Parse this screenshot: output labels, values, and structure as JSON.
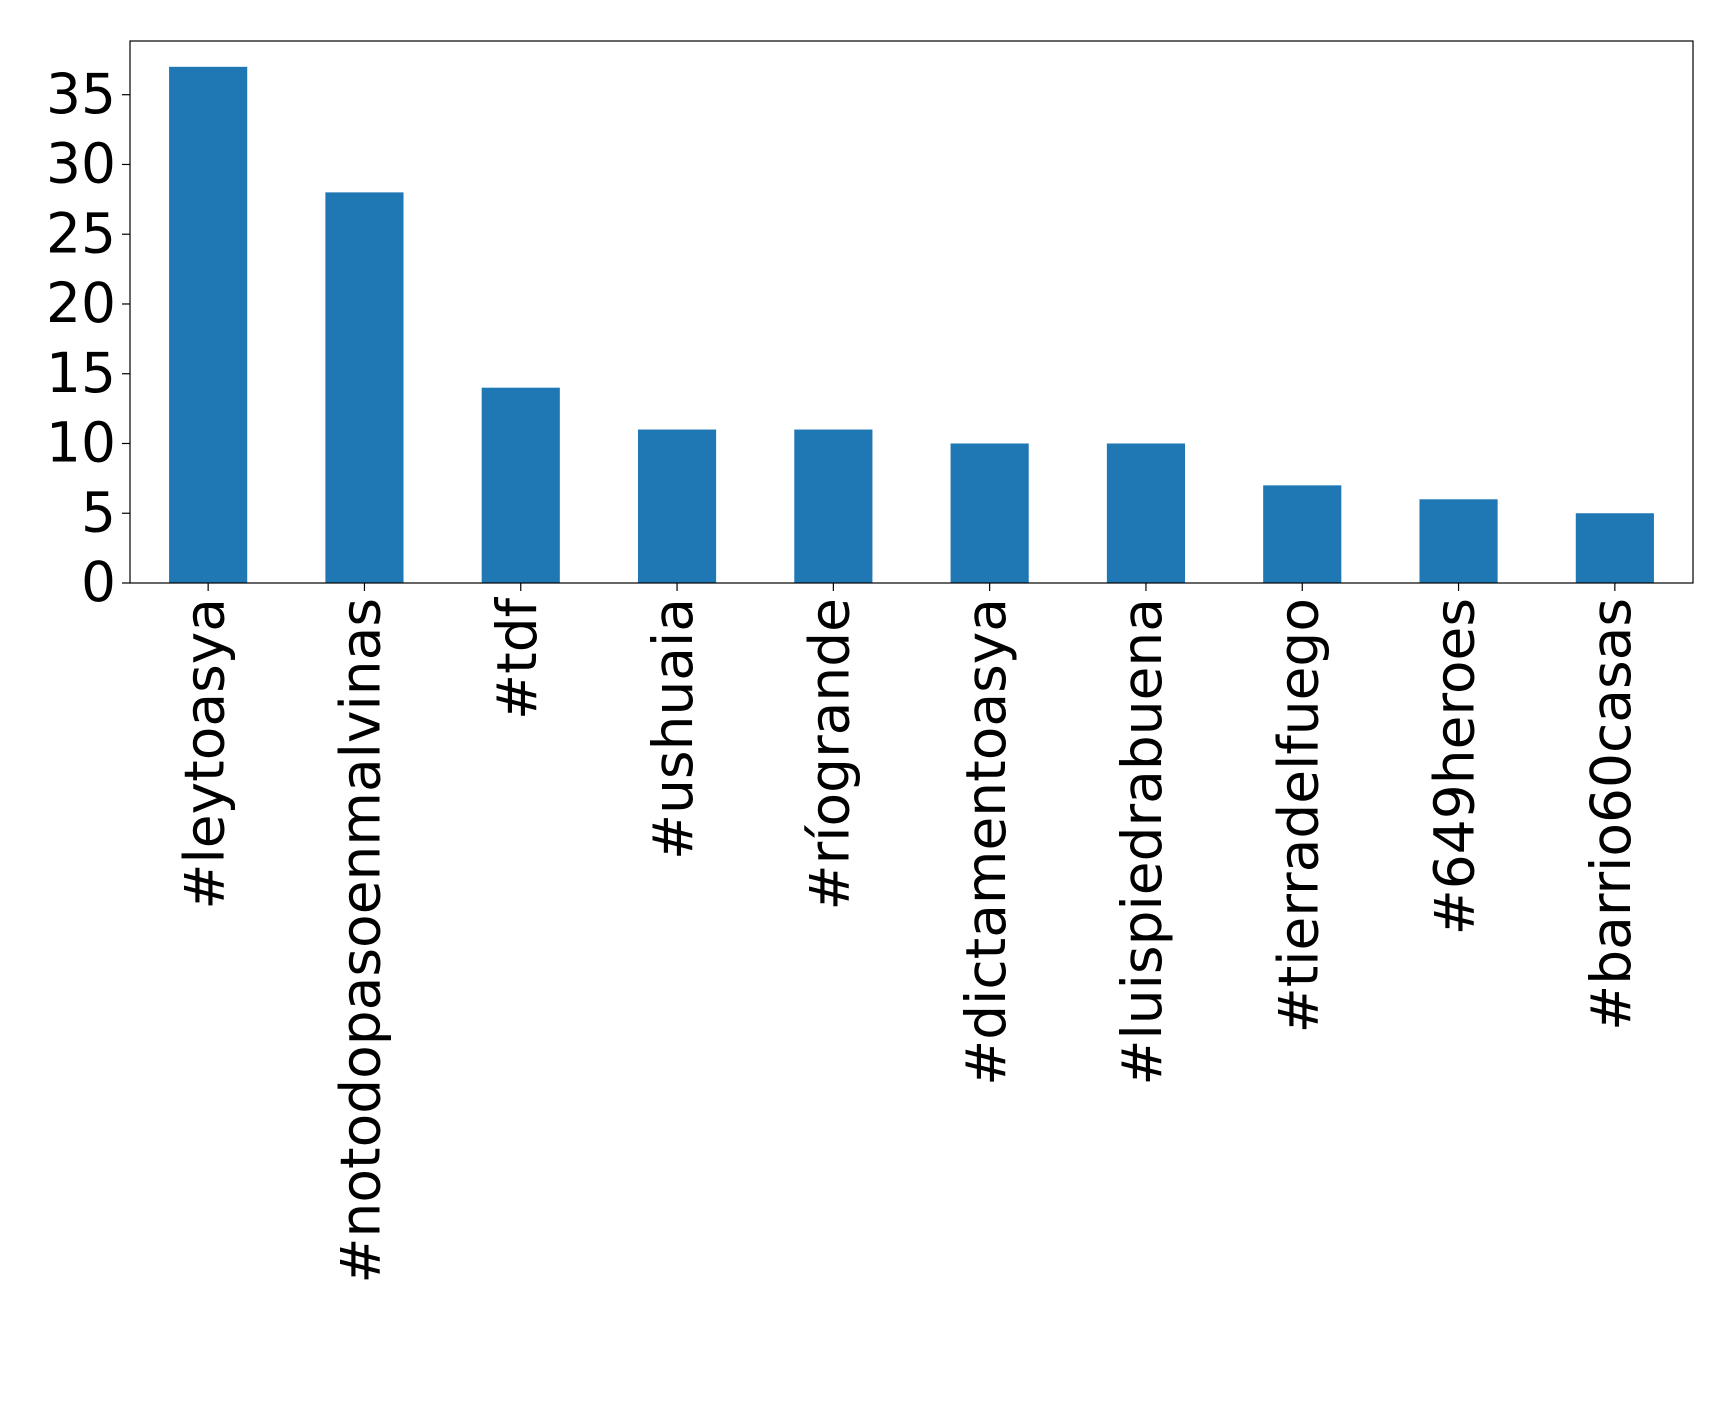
{
  "chart_data": {
    "type": "bar",
    "categories": [
      "#leytoasya",
      "#notodopasoenmalvinas",
      "#tdf",
      "#ushuaia",
      "#ríogrande",
      "#dictamentoasya",
      "#luispiedrabuena",
      "#tierradelfuego",
      "#649heroes",
      "#barrio60casas"
    ],
    "values": [
      37,
      28,
      14,
      11,
      11,
      10,
      10,
      7,
      6,
      5
    ],
    "color": "#1f77b4",
    "ylim": [
      0,
      38.85
    ],
    "yticks": [
      0,
      5,
      10,
      15,
      20,
      25,
      30,
      35
    ],
    "grid": false
  }
}
